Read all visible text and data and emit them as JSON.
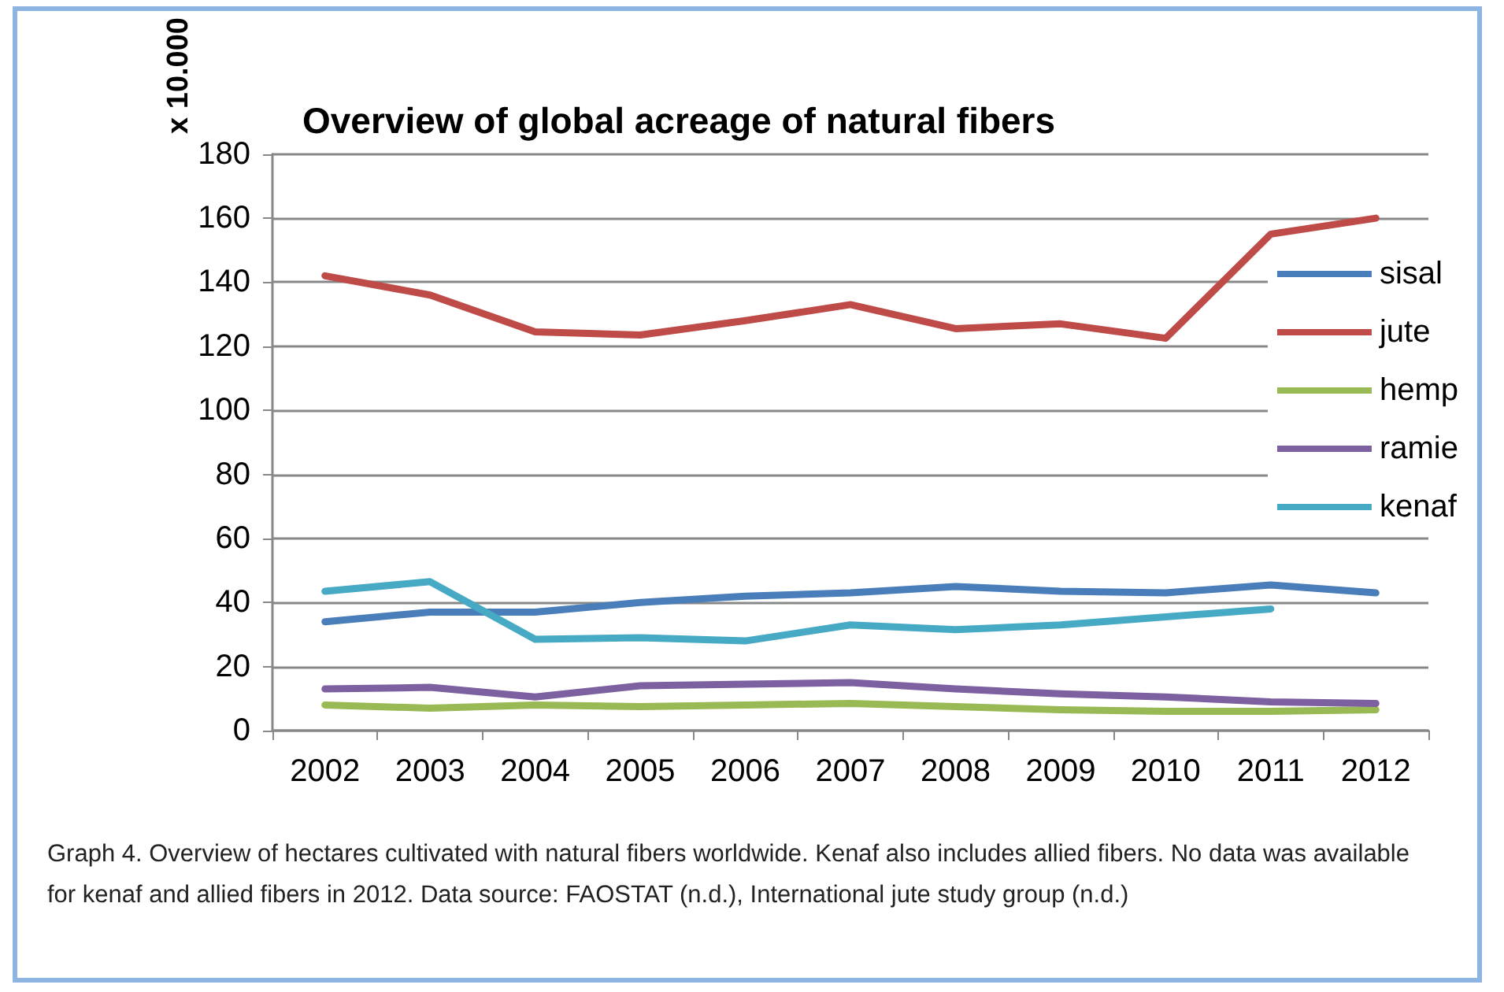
{
  "chart_data": {
    "type": "line",
    "title": "Overview of global acreage of natural fibers",
    "ylabel": "x 10.000",
    "categories": [
      "2002",
      "2003",
      "2004",
      "2005",
      "2006",
      "2007",
      "2008",
      "2009",
      "2010",
      "2011",
      "2012"
    ],
    "series": [
      {
        "name": "sisal",
        "color": "#4a7ebb",
        "values": [
          34,
          37,
          37,
          40,
          42,
          43,
          45,
          43.5,
          43,
          45.5,
          43
        ]
      },
      {
        "name": "jute",
        "color": "#be4b48",
        "values": [
          142,
          136,
          124.5,
          123.5,
          128,
          133,
          125.5,
          127,
          122.5,
          155,
          160
        ]
      },
      {
        "name": "hemp",
        "color": "#98b954",
        "values": [
          8,
          7,
          8,
          7.5,
          8,
          8.5,
          7.5,
          6.5,
          6,
          6,
          6.5
        ]
      },
      {
        "name": "ramie",
        "color": "#7d60a0",
        "values": [
          13,
          13.5,
          10.5,
          14,
          14.5,
          15,
          13,
          11.5,
          10.5,
          9,
          8.5
        ]
      },
      {
        "name": "kenaf",
        "color": "#46aac5",
        "values": [
          43.5,
          46.5,
          28.5,
          29,
          28,
          33,
          31.5,
          33,
          35.5,
          38,
          null
        ]
      }
    ],
    "ylim": [
      0,
      180
    ],
    "yticks": [
      0,
      20,
      40,
      60,
      80,
      100,
      120,
      140,
      160,
      180
    ],
    "grid": "y",
    "legend": "right",
    "marker": "none",
    "line_style": "solid",
    "annotations": [
      "Graph 4. Overview of hectares cultivated with natural fibers worldwide. Kenaf also includes allied fibers. No data was available for kenaf and allied fibers in 2012. Data source: FAOSTAT (n.d.), International jute study group (n.d.)"
    ]
  }
}
